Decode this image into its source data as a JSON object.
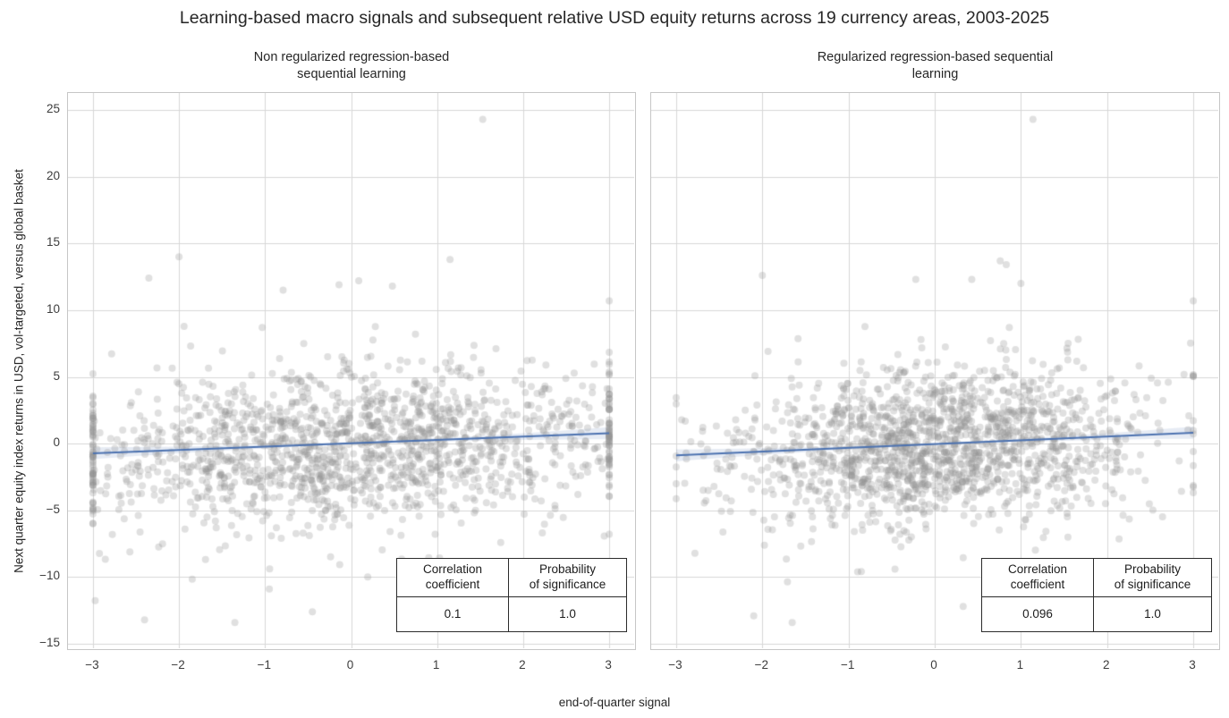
{
  "chart_data": {
    "type": "scatter",
    "figure_title": "Learning-based macro signals and subsequent relative USD equity returns across 19 currency areas, 2003-2025",
    "shared_xlabel": "end-of-quarter signal",
    "shared_ylabel": "Next quarter equity index returns in USD, vol-targeted, versus global basket",
    "grid": true,
    "colors": {
      "grid": "#d7d7d7",
      "spine": "#c6c6c6",
      "point": "rgba(143,143,143,0.28)",
      "regression_line": "#4c72b0",
      "confidence_band": "rgba(76,114,176,0.14)",
      "text": "#262626",
      "tick_text": "#3d3d3d"
    },
    "panels": [
      {
        "title": "Non regularized regression-based\nsequential learning",
        "xlim": [
          -3.29,
          3.29
        ],
        "ylim": [
          -15.33,
          26.27
        ],
        "xticks": [
          -3,
          -2,
          -1,
          0,
          1,
          2,
          3
        ],
        "yticks": [
          -15,
          -10,
          -5,
          0,
          5,
          10,
          15,
          20,
          25
        ],
        "show_ytick_labels": true,
        "n_points": 1660,
        "point_radius": 4,
        "seed": 7,
        "x_distribution": {
          "type": "normal_clipped",
          "mean": 0.05,
          "sd": 1.62,
          "clip": [
            -3,
            3
          ]
        },
        "y_model": {
          "intercept": -0.35,
          "slope": 0.25,
          "noise_sd": 2.9,
          "outlier_prob": 0.035,
          "outlier_sd": 5.3,
          "clip": [
            -13.4,
            15.2
          ]
        },
        "outlier_points": [
          [
            1.53,
            24.3
          ],
          [
            -2.0,
            14.0
          ],
          [
            -2.35,
            12.4
          ],
          [
            1.15,
            13.8
          ],
          [
            -0.79,
            11.5
          ],
          [
            -0.14,
            11.9
          ],
          [
            0.48,
            11.8
          ],
          [
            3.0,
            10.7
          ],
          [
            -2.4,
            -13.2
          ],
          [
            -0.45,
            -12.6
          ],
          [
            1.42,
            -12.4
          ],
          [
            -0.95,
            -10.9
          ]
        ],
        "regression": {
          "x0": -3,
          "y0": -0.72,
          "x1": 3,
          "y1": 0.78,
          "band_halfwidth_mid": 0.09,
          "band_halfwidth_end": 0.45
        },
        "stats_table": {
          "col1_header": "Correlation\ncoefficient",
          "col2_header": "Probability\nof significance",
          "col1_value": "0.1",
          "col2_value": "1.0"
        }
      },
      {
        "title": "Regularized regression-based sequential\nlearning",
        "xlim": [
          -3.29,
          3.29
        ],
        "ylim": [
          -15.33,
          26.27
        ],
        "xticks": [
          -3,
          -2,
          -1,
          0,
          1,
          2,
          3
        ],
        "yticks": [
          -15,
          -10,
          -5,
          0,
          5,
          10,
          15,
          20,
          25
        ],
        "show_ytick_labels": false,
        "n_points": 1660,
        "point_radius": 4,
        "seed": 21,
        "x_distribution": {
          "type": "normal_clipped",
          "mean": 0.05,
          "sd": 1.18,
          "clip": [
            -3,
            3
          ]
        },
        "y_model": {
          "intercept": -0.3,
          "slope": 0.28,
          "noise_sd": 2.9,
          "outlier_prob": 0.03,
          "outlier_sd": 5.0,
          "clip": [
            -13.4,
            15.2
          ]
        },
        "outlier_points": [
          [
            1.14,
            24.3
          ],
          [
            0.76,
            13.7
          ],
          [
            0.83,
            13.4
          ],
          [
            -0.22,
            12.3
          ],
          [
            0.43,
            12.3
          ],
          [
            -2.0,
            12.6
          ],
          [
            1.0,
            12.0
          ],
          [
            3.0,
            10.7
          ],
          [
            -2.1,
            -12.9
          ],
          [
            0.33,
            -12.2
          ]
        ],
        "regression": {
          "x0": -3,
          "y0": -0.88,
          "x1": 3,
          "y1": 0.82,
          "band_halfwidth_mid": 0.09,
          "band_halfwidth_end": 0.45
        },
        "stats_table": {
          "col1_header": "Correlation\ncoefficient",
          "col2_header": "Probability\nof significance",
          "col1_value": "0.096",
          "col2_value": "1.0"
        }
      }
    ]
  }
}
